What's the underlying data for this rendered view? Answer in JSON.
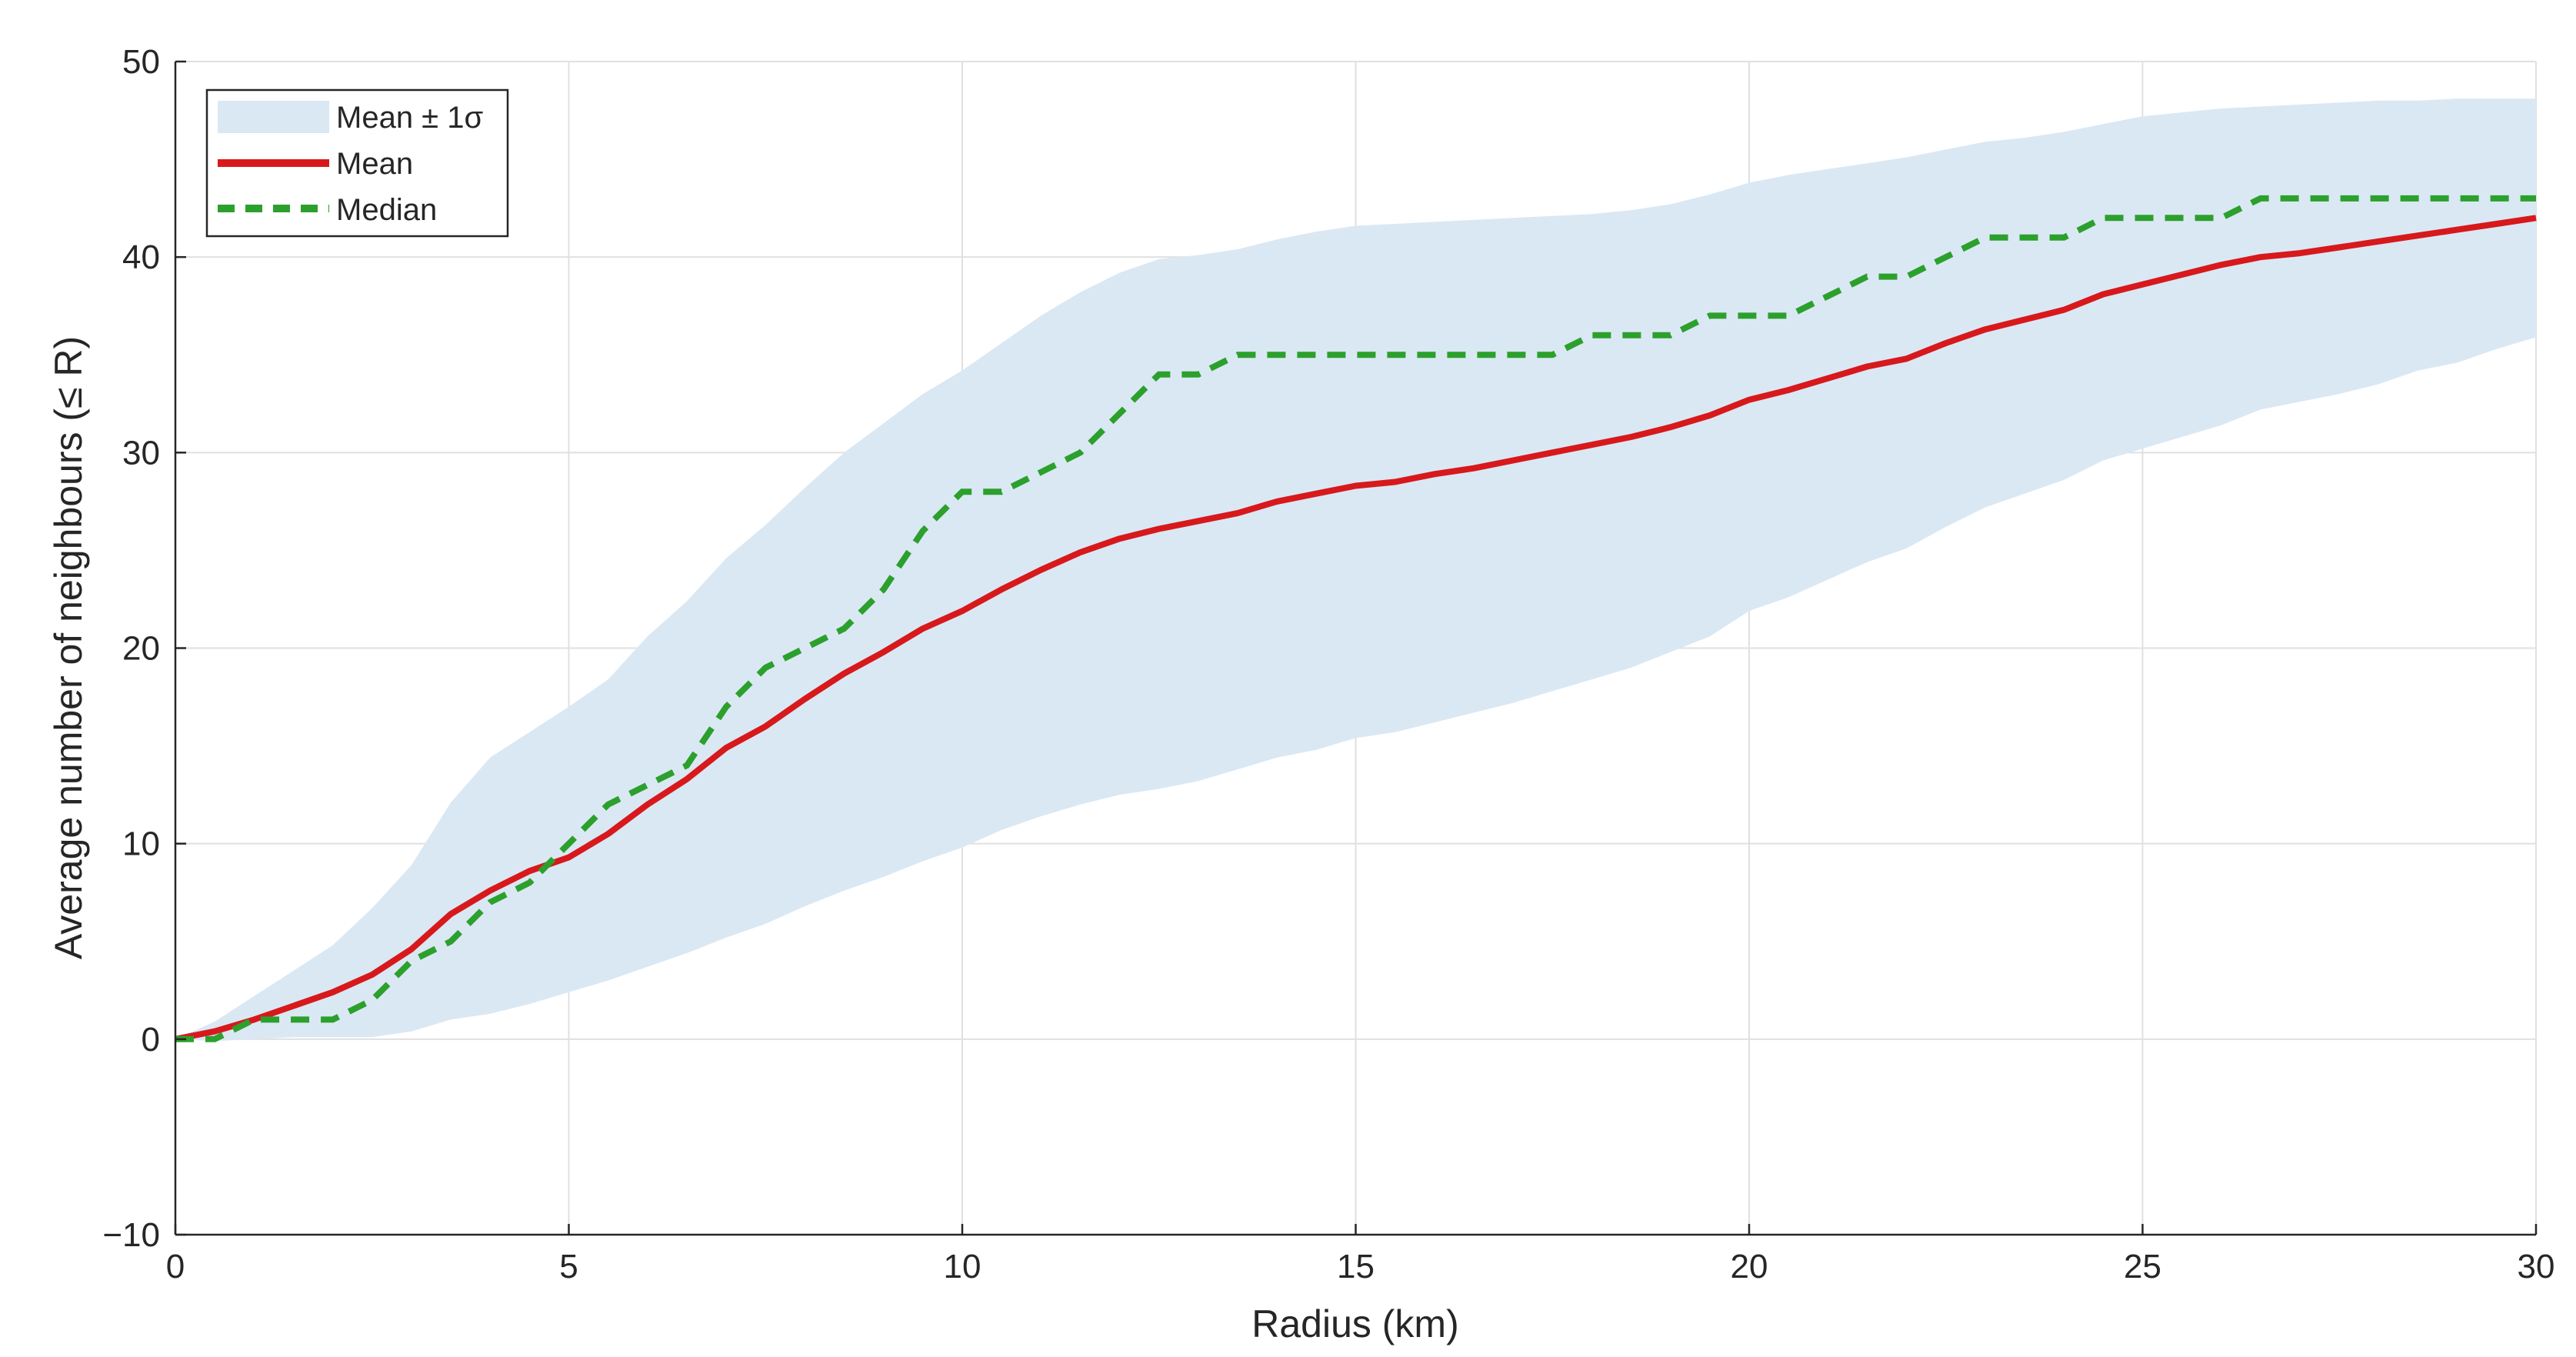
{
  "chart_data": {
    "type": "line",
    "title": "",
    "xlabel": "Radius (km)",
    "ylabel": "Average number of neighbours (≤ R)",
    "xlim": [
      0,
      30
    ],
    "ylim": [
      -10,
      50
    ],
    "xticks": [
      0,
      5,
      10,
      15,
      20,
      25,
      30
    ],
    "xtick_labels": [
      "0",
      "5",
      "10",
      "15",
      "20",
      "25",
      "30"
    ],
    "yticks": [
      -10,
      0,
      10,
      20,
      30,
      40,
      50
    ],
    "ytick_labels": [
      "−10",
      "0",
      "10",
      "20",
      "30",
      "40",
      "50"
    ],
    "grid": true,
    "legend_position": "top-left",
    "legend": [
      {
        "key": "band",
        "label": "Mean ± 1σ"
      },
      {
        "key": "mean",
        "label": "Mean"
      },
      {
        "key": "median",
        "label": "Median"
      }
    ],
    "colors": {
      "band": "#dae8f4",
      "mean": "#d7191c",
      "median": "#2ca02c",
      "grid": "#e0e0e0",
      "axis": "#262626"
    },
    "x": [
      0,
      0.5,
      1,
      1.5,
      2,
      2.5,
      3,
      3.5,
      4,
      4.5,
      5,
      5.5,
      6,
      6.5,
      7,
      7.5,
      8,
      8.5,
      9,
      9.5,
      10,
      10.5,
      11,
      11.5,
      12,
      12.5,
      13,
      13.5,
      14,
      14.5,
      15,
      15.5,
      16,
      16.5,
      17,
      17.5,
      18,
      18.5,
      19,
      19.5,
      20,
      20.5,
      21,
      21.5,
      22,
      22.5,
      23,
      23.5,
      24,
      24.5,
      25,
      25.5,
      26,
      26.5,
      27,
      27.5,
      28,
      28.5,
      29,
      29.5,
      30
    ],
    "series": [
      {
        "name": "Mean",
        "values": [
          0,
          0.4,
          1.0,
          1.7,
          2.4,
          3.3,
          4.6,
          6.4,
          7.6,
          8.6,
          9.3,
          10.5,
          12.0,
          13.3,
          14.9,
          16.0,
          17.4,
          18.7,
          19.8,
          21.0,
          21.9,
          23.0,
          24.0,
          24.9,
          25.6,
          26.1,
          26.5,
          26.9,
          27.5,
          27.9,
          28.3,
          28.5,
          28.9,
          29.2,
          29.6,
          30.0,
          30.4,
          30.8,
          31.3,
          31.9,
          32.7,
          33.2,
          33.8,
          34.4,
          34.8,
          35.6,
          36.3,
          36.8,
          37.3,
          38.1,
          38.6,
          39.1,
          39.6,
          40.0,
          40.2,
          40.5,
          40.8,
          41.1,
          41.4,
          41.7,
          42.0
        ]
      },
      {
        "name": "Median",
        "values": [
          0,
          0,
          1,
          1,
          1,
          2,
          4,
          5,
          7,
          8,
          10,
          12,
          13,
          14,
          17,
          19,
          20,
          21,
          23,
          26,
          28,
          28,
          29,
          30,
          32,
          34,
          34,
          35,
          35,
          35,
          35,
          35,
          35,
          35,
          35,
          35,
          36,
          36,
          36,
          37,
          37,
          37,
          38,
          39,
          39,
          40,
          41,
          41,
          41,
          42,
          42,
          42,
          42,
          43,
          43,
          43,
          43,
          43,
          43,
          43,
          43
        ]
      },
      {
        "name": "Mean + 1σ",
        "values": [
          0,
          0.9,
          2.2,
          3.5,
          4.8,
          6.7,
          8.9,
          12.1,
          14.4,
          15.7,
          17.0,
          18.4,
          20.6,
          22.4,
          24.6,
          26.3,
          28.2,
          30.0,
          31.5,
          33.0,
          34.2,
          35.6,
          37.0,
          38.2,
          39.2,
          39.9,
          40.1,
          40.4,
          40.9,
          41.3,
          41.6,
          41.7,
          41.8,
          41.9,
          42.0,
          42.1,
          42.2,
          42.4,
          42.7,
          43.2,
          43.8,
          44.2,
          44.5,
          44.8,
          45.1,
          45.5,
          45.9,
          46.1,
          46.4,
          46.8,
          47.2,
          47.4,
          47.6,
          47.7,
          47.8,
          47.9,
          48.0,
          48.0,
          48.1,
          48.1,
          48.1
        ]
      },
      {
        "name": "Mean − 1σ",
        "values": [
          0,
          -0.1,
          0.0,
          0.1,
          0.1,
          0.1,
          0.4,
          1.0,
          1.3,
          1.8,
          2.4,
          3.0,
          3.7,
          4.4,
          5.2,
          5.9,
          6.8,
          7.6,
          8.3,
          9.1,
          9.8,
          10.7,
          11.4,
          12.0,
          12.5,
          12.8,
          13.2,
          13.8,
          14.4,
          14.8,
          15.4,
          15.7,
          16.2,
          16.7,
          17.2,
          17.8,
          18.4,
          19.0,
          19.8,
          20.6,
          21.9,
          22.6,
          23.5,
          24.4,
          25.1,
          26.2,
          27.2,
          27.9,
          28.6,
          29.6,
          30.2,
          30.8,
          31.4,
          32.2,
          32.6,
          33.0,
          33.5,
          34.2,
          34.6,
          35.3,
          35.9
        ]
      }
    ]
  }
}
